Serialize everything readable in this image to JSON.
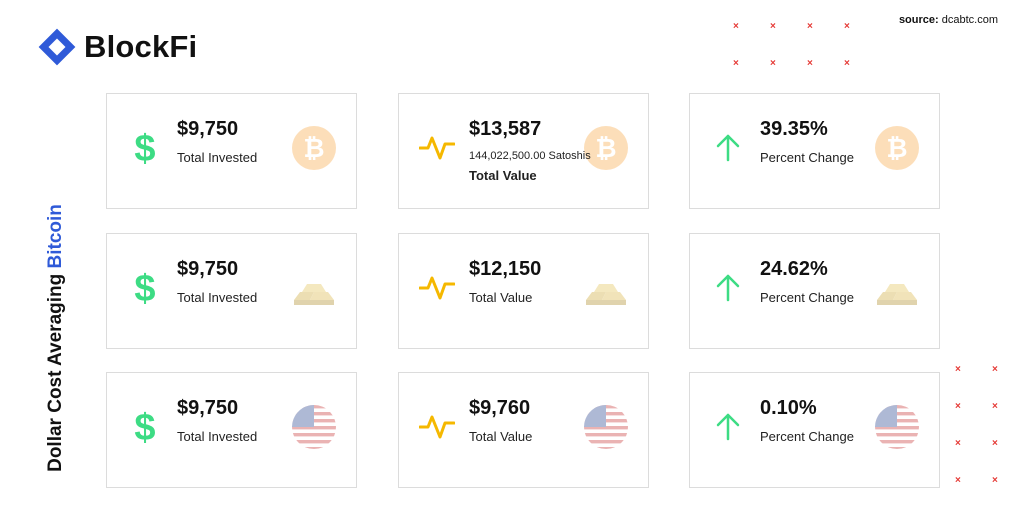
{
  "brand": {
    "name": "BlockFi",
    "color": "#2f5ad8"
  },
  "source": {
    "label": "source:",
    "value": "dcabtc.com"
  },
  "side_title": {
    "prefix": "Dollar Cost Averaging ",
    "highlight": "Bitcoin"
  },
  "colors": {
    "dollar": "#3ddc84",
    "pulse": "#f5b800",
    "arrow": "#3ddc84",
    "bitcoin": "#f7931a",
    "x_marks": "#e53935"
  },
  "rows": [
    {
      "asset": "bitcoin-icon",
      "cards": [
        {
          "icon": "dollar-icon",
          "value": "$9,750",
          "label": "Total Invested"
        },
        {
          "icon": "pulse-icon",
          "value": "$13,587",
          "sublabel": "144,022,500.00 Satoshis",
          "label": "Total Value"
        },
        {
          "icon": "arrow-up-icon",
          "value": "39.35%",
          "label": "Percent Change"
        }
      ]
    },
    {
      "asset": "gold-bars-icon",
      "cards": [
        {
          "icon": "dollar-icon",
          "value": "$9,750",
          "label": "Total Invested"
        },
        {
          "icon": "pulse-icon",
          "value": "$12,150",
          "label": "Total Value"
        },
        {
          "icon": "arrow-up-icon",
          "value": "24.62%",
          "label": "Percent Change"
        }
      ]
    },
    {
      "asset": "us-flag-icon",
      "cards": [
        {
          "icon": "dollar-icon",
          "value": "$9,750",
          "label": "Total Invested"
        },
        {
          "icon": "pulse-icon",
          "value": "$9,760",
          "label": "Total Value"
        },
        {
          "icon": "arrow-up-icon",
          "value": "0.10%",
          "label": "Percent Change"
        }
      ]
    }
  ]
}
